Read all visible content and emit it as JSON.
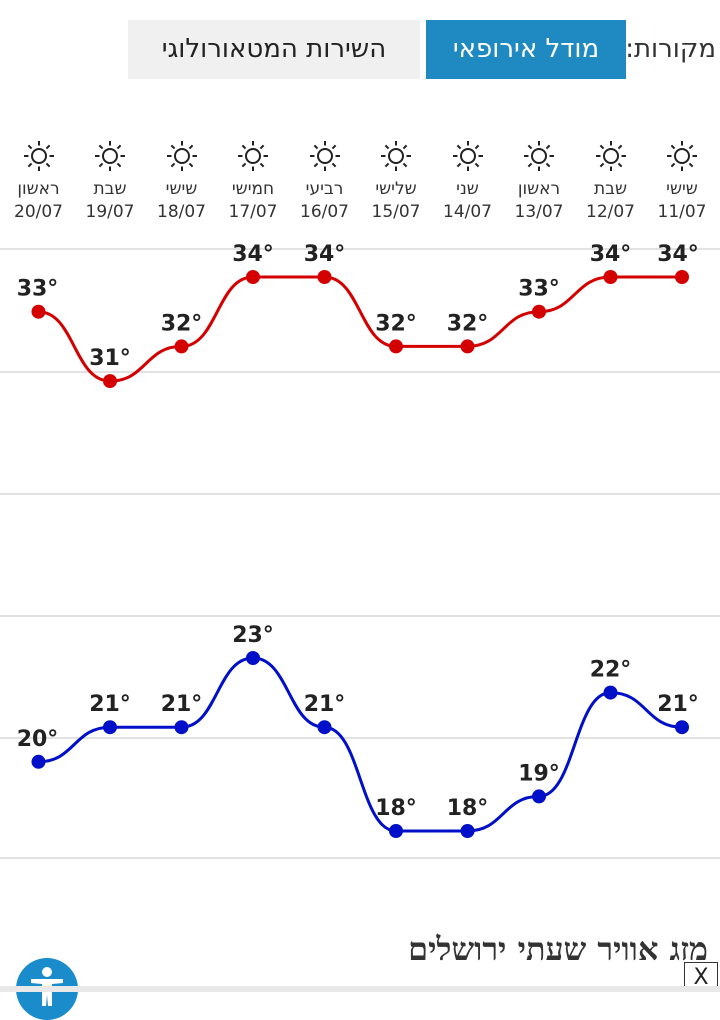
{
  "sources": {
    "label": "מקורות:",
    "european_model": "מודל אירופאי",
    "ims": "השירות המטאורולוגי"
  },
  "days": [
    {
      "name": "שישי",
      "date": "11/07",
      "icon": "sun-icon"
    },
    {
      "name": "שבת",
      "date": "12/07",
      "icon": "sun-icon"
    },
    {
      "name": "ראשון",
      "date": "13/07",
      "icon": "sun-icon"
    },
    {
      "name": "שני",
      "date": "14/07",
      "icon": "sun-icon"
    },
    {
      "name": "שלישי",
      "date": "15/07",
      "icon": "sun-icon"
    },
    {
      "name": "רביעי",
      "date": "16/07",
      "icon": "sun-icon"
    },
    {
      "name": "חמישי",
      "date": "17/07",
      "icon": "sun-icon"
    },
    {
      "name": "שישי",
      "date": "18/07",
      "icon": "sun-icon"
    },
    {
      "name": "שבת",
      "date": "19/07",
      "icon": "sun-icon"
    },
    {
      "name": "ראשון",
      "date": "20/07",
      "icon": "sun-icon"
    }
  ],
  "chart_data": {
    "type": "line",
    "x": [
      "11/07",
      "12/07",
      "13/07",
      "14/07",
      "15/07",
      "16/07",
      "17/07",
      "18/07",
      "19/07",
      "20/07"
    ],
    "x_direction": "right-to-left",
    "grid": true,
    "series": [
      {
        "values": [
          34,
          34,
          33,
          32,
          32,
          34,
          34,
          32,
          31,
          33
        ],
        "color": "#d40000"
      },
      {
        "values": [
          21,
          22,
          19,
          18,
          18,
          21,
          23,
          21,
          21,
          20
        ],
        "color": "#0010c8"
      }
    ],
    "unit": "°"
  },
  "section_title": "מזג אוויר שעתי ירושלים",
  "close_label": "X"
}
